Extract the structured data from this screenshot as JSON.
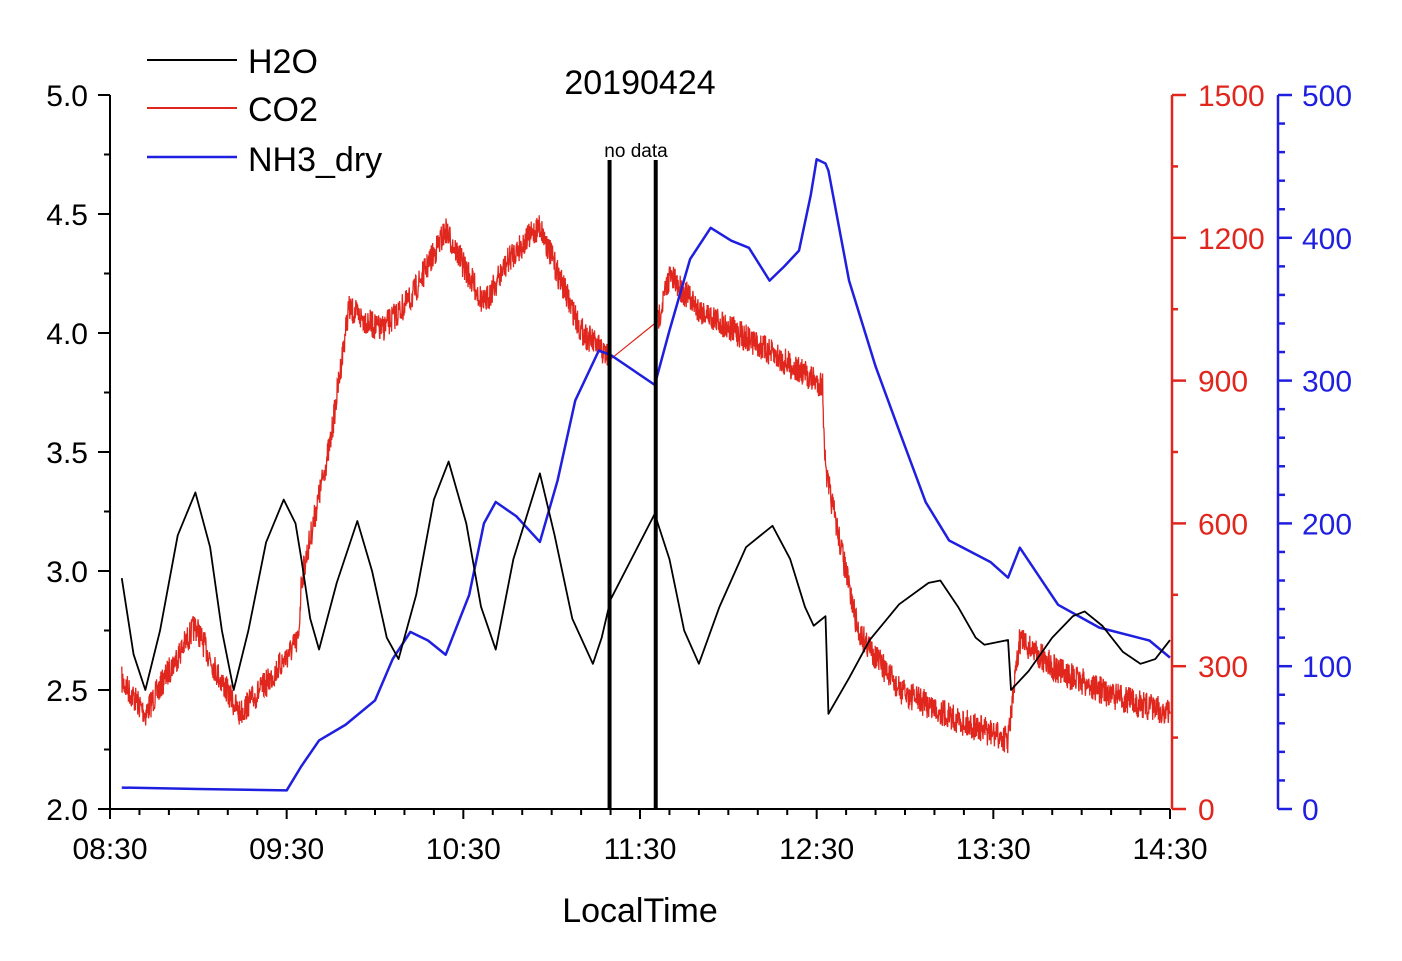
{
  "chart_data": {
    "type": "line",
    "title": "20190424",
    "xlabel": "LocalTime",
    "x_ticks": [
      "08:30",
      "09:30",
      "10:30",
      "11:30",
      "12:30",
      "13:30",
      "14:30"
    ],
    "xlim": [
      "08:30",
      "14:30"
    ],
    "axes": {
      "left": {
        "ylim": [
          2.0,
          5.0
        ],
        "ticks": [
          "2.0",
          "2.5",
          "3.0",
          "3.5",
          "4.0",
          "4.5",
          "5.0"
        ],
        "color": "#000000"
      },
      "right_red": {
        "ylim": [
          0,
          1500
        ],
        "ticks": [
          "0",
          "300",
          "600",
          "900",
          "1200",
          "1500"
        ],
        "color": "#e0261d"
      },
      "right_blue": {
        "ylim": [
          0,
          500
        ],
        "ticks": [
          "0",
          "100",
          "200",
          "300",
          "400",
          "500"
        ],
        "color": "#1f1fe0"
      }
    },
    "legend": {
      "placement": "top-left",
      "entries": [
        "H2O",
        "CO2",
        "NH3_dry"
      ]
    },
    "annotation": {
      "text": "no data",
      "gap": [
        "11:20",
        "11:35"
      ]
    },
    "series": [
      {
        "name": "H2O",
        "axis": "left",
        "color": "#000000",
        "points": [
          [
            "08:34",
            2.97
          ],
          [
            "08:38",
            2.65
          ],
          [
            "08:42",
            2.5
          ],
          [
            "08:47",
            2.75
          ],
          [
            "08:53",
            3.15
          ],
          [
            "08:59",
            3.33
          ],
          [
            "09:04",
            3.1
          ],
          [
            "09:08",
            2.75
          ],
          [
            "09:12",
            2.5
          ],
          [
            "09:17",
            2.75
          ],
          [
            "09:23",
            3.12
          ],
          [
            "09:29",
            3.3
          ],
          [
            "09:33",
            3.2
          ],
          [
            "09:35",
            3.05
          ],
          [
            "09:38",
            2.8
          ],
          [
            "09:41",
            2.67
          ],
          [
            "09:47",
            2.95
          ],
          [
            "09:54",
            3.21
          ],
          [
            "09:59",
            3.0
          ],
          [
            "10:04",
            2.72
          ],
          [
            "10:08",
            2.63
          ],
          [
            "10:14",
            2.9
          ],
          [
            "10:20",
            3.3
          ],
          [
            "10:25",
            3.46
          ],
          [
            "10:31",
            3.2
          ],
          [
            "10:36",
            2.85
          ],
          [
            "10:41",
            2.67
          ],
          [
            "10:47",
            3.05
          ],
          [
            "10:56",
            3.41
          ],
          [
            "11:01",
            3.15
          ],
          [
            "11:07",
            2.8
          ],
          [
            "11:14",
            2.61
          ],
          [
            "11:17",
            2.72
          ],
          [
            "11:20",
            2.88
          ],
          [
            "11:35",
            3.24
          ],
          [
            "11:40",
            3.05
          ],
          [
            "11:45",
            2.75
          ],
          [
            "11:50",
            2.61
          ],
          [
            "11:57",
            2.85
          ],
          [
            "12:06",
            3.1
          ],
          [
            "12:15",
            3.19
          ],
          [
            "12:21",
            3.05
          ],
          [
            "12:26",
            2.85
          ],
          [
            "12:29",
            2.77
          ],
          [
            "12:33",
            2.81
          ],
          [
            "12:34",
            2.4
          ],
          [
            "12:41",
            2.55
          ],
          [
            "12:48",
            2.71
          ],
          [
            "12:58",
            2.86
          ],
          [
            "13:08",
            2.95
          ],
          [
            "13:12",
            2.96
          ],
          [
            "13:18",
            2.85
          ],
          [
            "13:24",
            2.72
          ],
          [
            "13:27",
            2.69
          ],
          [
            "13:35",
            2.71
          ],
          [
            "13:36",
            2.5
          ],
          [
            "13:42",
            2.58
          ],
          [
            "13:50",
            2.72
          ],
          [
            "13:57",
            2.81
          ],
          [
            "14:01",
            2.83
          ],
          [
            "14:07",
            2.77
          ],
          [
            "14:14",
            2.66
          ],
          [
            "14:20",
            2.61
          ],
          [
            "14:25",
            2.63
          ],
          [
            "14:30",
            2.71
          ]
        ]
      },
      {
        "name": "CO2",
        "axis": "right_red",
        "color": "#e0261d",
        "points": [
          [
            "08:34",
            270
          ],
          [
            "08:42",
            200
          ],
          [
            "08:50",
            290
          ],
          [
            "08:59",
            385
          ],
          [
            "09:06",
            290
          ],
          [
            "09:14",
            200
          ],
          [
            "09:24",
            270
          ],
          [
            "09:34",
            355
          ],
          [
            "09:35",
            480
          ],
          [
            "09:45",
            775
          ],
          [
            "09:51",
            1050
          ],
          [
            "10:02",
            1005
          ],
          [
            "10:12",
            1070
          ],
          [
            "10:24",
            1215
          ],
          [
            "10:37",
            1060
          ],
          [
            "10:46",
            1160
          ],
          [
            "10:56",
            1225
          ],
          [
            "11:03",
            1110
          ],
          [
            "11:10",
            1005
          ],
          [
            "11:20",
            945
          ],
          [
            "11:36",
            1025
          ],
          [
            "11:40",
            1120
          ],
          [
            "11:50",
            1050
          ],
          [
            "12:10",
            975
          ],
          [
            "12:32",
            890
          ],
          [
            "12:33",
            710
          ],
          [
            "12:44",
            375
          ],
          [
            "12:58",
            250
          ],
          [
            "13:18",
            187
          ],
          [
            "13:35",
            145
          ],
          [
            "13:39",
            355
          ],
          [
            "13:52",
            290
          ],
          [
            "14:10",
            240
          ],
          [
            "14:30",
            200
          ]
        ]
      },
      {
        "name": "NH3_dry",
        "axis": "right_blue",
        "color": "#1f1fe0",
        "points": [
          [
            "08:34",
            15
          ],
          [
            "09:00",
            14
          ],
          [
            "09:30",
            13
          ],
          [
            "09:35",
            30
          ],
          [
            "09:41",
            48
          ],
          [
            "09:50",
            59
          ],
          [
            "10:00",
            76
          ],
          [
            "10:06",
            105
          ],
          [
            "10:12",
            124
          ],
          [
            "10:18",
            118
          ],
          [
            "10:24",
            108
          ],
          [
            "10:32",
            150
          ],
          [
            "10:37",
            200
          ],
          [
            "10:41",
            215
          ],
          [
            "10:48",
            205
          ],
          [
            "10:56",
            187
          ],
          [
            "11:02",
            230
          ],
          [
            "11:08",
            286
          ],
          [
            "11:16",
            321
          ],
          [
            "11:20",
            318
          ],
          [
            "11:35",
            297
          ],
          [
            "11:40",
            335
          ],
          [
            "11:47",
            385
          ],
          [
            "11:54",
            407
          ],
          [
            "12:01",
            398
          ],
          [
            "12:07",
            393
          ],
          [
            "12:14",
            370
          ],
          [
            "12:19",
            380
          ],
          [
            "12:24",
            391
          ],
          [
            "12:28",
            430
          ],
          [
            "12:30",
            455
          ],
          [
            "12:33",
            452
          ],
          [
            "12:34",
            447
          ],
          [
            "12:41",
            370
          ],
          [
            "12:50",
            310
          ],
          [
            "12:58",
            265
          ],
          [
            "13:07",
            215
          ],
          [
            "13:15",
            188
          ],
          [
            "13:29",
            173
          ],
          [
            "13:35",
            162
          ],
          [
            "13:39",
            183
          ],
          [
            "13:52",
            143
          ],
          [
            "14:06",
            127
          ],
          [
            "14:23",
            118
          ],
          [
            "14:30",
            106
          ]
        ]
      }
    ]
  }
}
